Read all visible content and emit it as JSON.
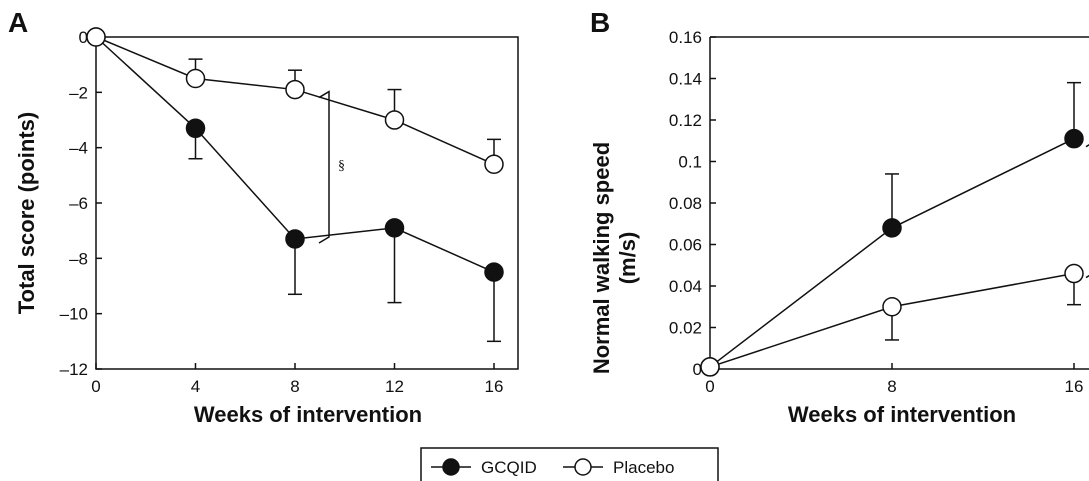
{
  "chart_data": [
    {
      "panel_label": "A",
      "type": "line",
      "xlabel": "Weeks of intervention",
      "ylabel": "Total score (points)",
      "x": [
        0,
        4,
        8,
        12,
        16
      ],
      "xticks": [
        "0",
        "4",
        "8",
        "12",
        "16"
      ],
      "ylim": [
        -12,
        0
      ],
      "yticks": [
        "0",
        "–2",
        "–4",
        "–6",
        "–8",
        "–10",
        "–12"
      ],
      "series": [
        {
          "name": "GCQID",
          "marker": "filled-circle",
          "values": [
            0,
            -3.3,
            -7.3,
            -6.9,
            -8.5
          ],
          "error_down": [
            0,
            1.1,
            2.0,
            2.7,
            2.5
          ]
        },
        {
          "name": "Placebo",
          "marker": "open-circle",
          "values": [
            0,
            -1.5,
            -1.9,
            -3.0,
            -4.6
          ],
          "error_up": [
            0,
            0.7,
            0.7,
            1.1,
            0.9
          ]
        }
      ],
      "annotation": {
        "symbol": "§",
        "at_x": 8
      }
    },
    {
      "panel_label": "B",
      "type": "line",
      "xlabel": "Weeks of intervention",
      "ylabel_lines": [
        "Normal walking speed",
        "(m/s)"
      ],
      "x": [
        0,
        8,
        16
      ],
      "xticks": [
        "0",
        "8",
        "16"
      ],
      "ylim": [
        0,
        0.16
      ],
      "yticks": [
        "0",
        "0.02",
        "0.04",
        "0.06",
        "0.08",
        "0.1",
        "0.12",
        "0.14",
        "0.16"
      ],
      "series": [
        {
          "name": "GCQID",
          "marker": "filled-circle",
          "values": [
            0.001,
            0.068,
            0.111
          ],
          "error_up": [
            0,
            0.026,
            0.027
          ]
        },
        {
          "name": "Placebo",
          "marker": "open-circle",
          "values": [
            0.001,
            0.03,
            0.046
          ],
          "error_down": [
            0,
            0.016,
            0.015
          ]
        }
      ],
      "annotation": {
        "symbol": "§",
        "at_x": 16
      }
    }
  ],
  "legend": {
    "items": [
      {
        "label": "GCQID",
        "marker": "filled-circle"
      },
      {
        "label": "Placebo",
        "marker": "open-circle"
      }
    ]
  }
}
